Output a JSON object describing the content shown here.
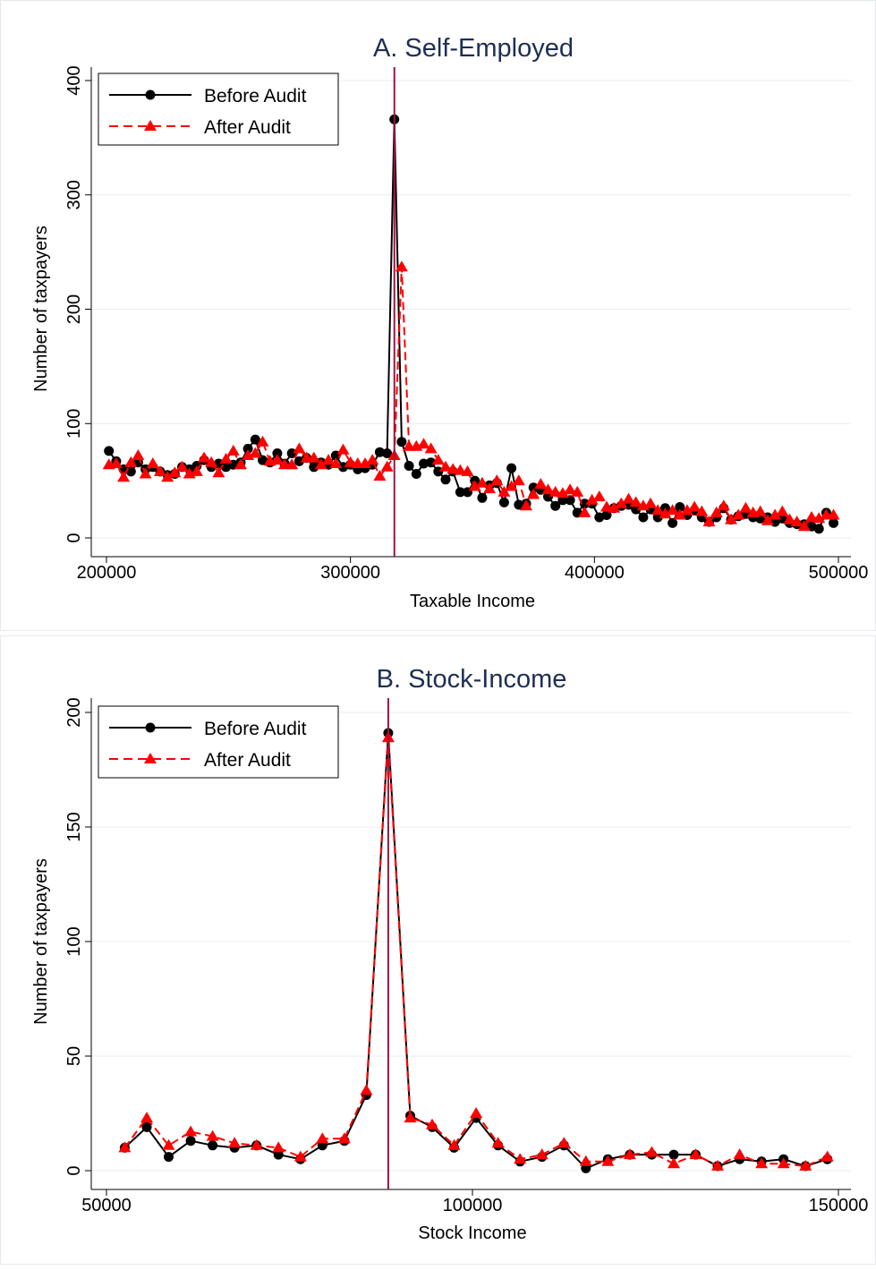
{
  "colors": {
    "before": "#000000",
    "after": "#ff0000",
    "threshold": "#a0133c",
    "title": "#1f2f54"
  },
  "chart_data": [
    {
      "type": "line",
      "title": "A. Self-Employed",
      "xlabel": "Taxable Income",
      "ylabel": "Number of taxpayers",
      "xlim": [
        200000,
        500000
      ],
      "ylim": [
        0,
        400
      ],
      "xticks": [
        "200000",
        "300000",
        "400000",
        "500000"
      ],
      "yticks": [
        "0",
        "100",
        "200",
        "300",
        "400"
      ],
      "grid": true,
      "legend_position": "top-left",
      "threshold_x": 318000,
      "legend": [
        "Before Audit",
        "After Audit"
      ],
      "series": [
        {
          "name": "Before Audit",
          "x": [
            201000,
            204000,
            207000,
            210000,
            213000,
            216000,
            219000,
            222000,
            225000,
            228000,
            231000,
            234000,
            237000,
            240000,
            243000,
            246000,
            249000,
            252000,
            255000,
            258000,
            261000,
            264000,
            267000,
            270000,
            273000,
            276000,
            279000,
            282000,
            285000,
            288000,
            291000,
            294000,
            297000,
            300000,
            303000,
            306000,
            309000,
            312000,
            315000,
            318000,
            321000,
            324000,
            327000,
            330000,
            333000,
            336000,
            339000,
            342000,
            345000,
            348000,
            351000,
            354000,
            357000,
            360000,
            363000,
            366000,
            369000,
            372000,
            375000,
            378000,
            381000,
            384000,
            387000,
            390000,
            393000,
            396000,
            399000,
            402000,
            405000,
            408000,
            411000,
            414000,
            417000,
            420000,
            423000,
            426000,
            429000,
            432000,
            435000,
            438000,
            441000,
            444000,
            447000,
            450000,
            453000,
            456000,
            459000,
            462000,
            465000,
            468000,
            471000,
            474000,
            477000,
            480000,
            483000,
            486000,
            489000,
            492000,
            495000,
            498000
          ],
          "values": [
            76,
            67,
            60,
            58,
            66,
            60,
            62,
            58,
            55,
            56,
            62,
            60,
            63,
            68,
            62,
            65,
            62,
            64,
            66,
            78,
            86,
            68,
            66,
            74,
            65,
            74,
            67,
            70,
            62,
            66,
            64,
            72,
            62,
            64,
            60,
            61,
            64,
            75,
            74,
            366,
            84,
            63,
            56,
            65,
            66,
            58,
            51,
            58,
            40,
            40,
            50,
            35,
            46,
            48,
            31,
            61,
            29,
            30,
            44,
            42,
            36,
            28,
            33,
            33,
            22,
            30,
            30,
            18,
            20,
            26,
            28,
            29,
            25,
            18,
            25,
            18,
            26,
            13,
            27,
            20,
            24,
            18,
            14,
            18,
            26,
            16,
            19,
            21,
            18,
            17,
            18,
            14,
            17,
            13,
            12,
            12,
            10,
            8,
            22,
            13
          ]
        },
        {
          "name": "After Audit",
          "x": [
            201000,
            204000,
            207000,
            210000,
            213000,
            216000,
            219000,
            222000,
            225000,
            228000,
            231000,
            234000,
            237000,
            240000,
            243000,
            246000,
            249000,
            252000,
            255000,
            258000,
            261000,
            264000,
            267000,
            270000,
            273000,
            276000,
            279000,
            282000,
            285000,
            288000,
            291000,
            294000,
            297000,
            300000,
            303000,
            306000,
            309000,
            312000,
            315000,
            318000,
            321000,
            324000,
            327000,
            330000,
            333000,
            336000,
            339000,
            342000,
            345000,
            348000,
            351000,
            354000,
            357000,
            360000,
            363000,
            366000,
            369000,
            372000,
            375000,
            378000,
            381000,
            384000,
            387000,
            390000,
            393000,
            396000,
            399000,
            402000,
            405000,
            408000,
            411000,
            414000,
            417000,
            420000,
            423000,
            426000,
            429000,
            432000,
            435000,
            438000,
            441000,
            444000,
            447000,
            450000,
            453000,
            456000,
            459000,
            462000,
            465000,
            468000,
            471000,
            474000,
            477000,
            480000,
            483000,
            486000,
            489000,
            492000,
            495000,
            498000
          ],
          "values": [
            64,
            65,
            53,
            66,
            72,
            56,
            65,
            58,
            53,
            57,
            62,
            56,
            58,
            70,
            66,
            57,
            69,
            76,
            64,
            72,
            74,
            84,
            67,
            68,
            64,
            64,
            78,
            70,
            70,
            64,
            68,
            65,
            77,
            66,
            65,
            65,
            68,
            54,
            62,
            72,
            237,
            80,
            80,
            82,
            78,
            68,
            62,
            60,
            59,
            58,
            45,
            48,
            43,
            50,
            40,
            45,
            50,
            28,
            38,
            47,
            42,
            40,
            39,
            42,
            40,
            22,
            33,
            36,
            27,
            26,
            30,
            34,
            31,
            28,
            30,
            24,
            21,
            24,
            20,
            24,
            27,
            23,
            14,
            22,
            28,
            16,
            20,
            26,
            22,
            23,
            15,
            20,
            23,
            16,
            14,
            10,
            18,
            17,
            20,
            20
          ]
        }
      ]
    },
    {
      "type": "line",
      "title": "B. Stock-Income",
      "xlabel": "Stock Income",
      "ylabel": "Number of taxpayers",
      "xlim": [
        50000,
        150000
      ],
      "ylim": [
        0,
        200
      ],
      "xticks": [
        "50000",
        "100000",
        "150000"
      ],
      "yticks": [
        "0",
        "50",
        "100",
        "150",
        "200"
      ],
      "grid": true,
      "legend_position": "top-left",
      "threshold_x": 88500,
      "legend": [
        "Before Audit",
        "After Audit"
      ],
      "series": [
        {
          "name": "Before Audit",
          "x": [
            52500,
            55500,
            58500,
            61500,
            64500,
            67500,
            70500,
            73500,
            76500,
            79500,
            82500,
            85500,
            88500,
            91500,
            94500,
            97500,
            100500,
            103500,
            106500,
            109500,
            112500,
            115500,
            118500,
            121500,
            124500,
            127500,
            130500,
            133500,
            136500,
            139500,
            142500,
            145500,
            148500
          ],
          "values": [
            10,
            19,
            6,
            13,
            11,
            10,
            11,
            7,
            5,
            11,
            13,
            33,
            191,
            24,
            19,
            10,
            23,
            11,
            4,
            6,
            11,
            1,
            5,
            7,
            7,
            7,
            7,
            2,
            5,
            4,
            5,
            2,
            5
          ]
        },
        {
          "name": "After Audit",
          "x": [
            52500,
            55500,
            58500,
            61500,
            64500,
            67500,
            70500,
            73500,
            76500,
            79500,
            82500,
            85500,
            88500,
            91500,
            94500,
            97500,
            100500,
            103500,
            106500,
            109500,
            112500,
            115500,
            118500,
            121500,
            124500,
            127500,
            130500,
            133500,
            136500,
            139500,
            142500,
            145500,
            148500
          ],
          "values": [
            10,
            23,
            11,
            17,
            15,
            12,
            11,
            10,
            6,
            14,
            14,
            35,
            189,
            23,
            20,
            11,
            25,
            12,
            5,
            7,
            12,
            4,
            4,
            7,
            8,
            3,
            7,
            2,
            7,
            3,
            3,
            2,
            6
          ]
        }
      ]
    }
  ]
}
